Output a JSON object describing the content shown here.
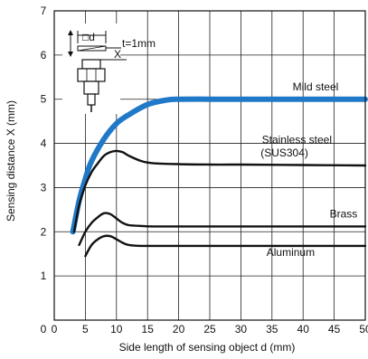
{
  "chart_data": {
    "type": "line",
    "xlabel": "Side length of sensing object d (mm)",
    "ylabel": "Sensing distance X (mm)",
    "xlim": [
      0,
      50
    ],
    "ylim": [
      0,
      7
    ],
    "xticks": [
      0,
      5,
      10,
      15,
      20,
      25,
      30,
      35,
      40,
      45,
      50
    ],
    "yticks": [
      1,
      2,
      3,
      4,
      5,
      6,
      7
    ],
    "grid": true,
    "series": [
      {
        "name": "Mild steel",
        "color": "#1f78c8",
        "x": [
          3,
          4,
          5,
          6,
          8,
          10,
          12,
          15,
          18,
          20,
          25,
          30,
          35,
          40,
          45,
          50
        ],
        "y": [
          2.0,
          2.7,
          3.2,
          3.6,
          4.1,
          4.45,
          4.65,
          4.88,
          4.98,
          5.0,
          5.0,
          5.0,
          5.0,
          5.0,
          5.0,
          5.0
        ]
      },
      {
        "name": "Stainless steel (SUS304)",
        "color": "#111111",
        "x": [
          3.2,
          4,
          5,
          6,
          7,
          8,
          9,
          10,
          11,
          12,
          14,
          16,
          20,
          25,
          30,
          40,
          50
        ],
        "y": [
          2.0,
          2.6,
          3.05,
          3.35,
          3.55,
          3.72,
          3.8,
          3.83,
          3.8,
          3.72,
          3.6,
          3.55,
          3.53,
          3.52,
          3.52,
          3.51,
          3.5
        ]
      },
      {
        "name": "Brass",
        "color": "#111111",
        "x": [
          4,
          5,
          6,
          7,
          8,
          9,
          10,
          11,
          12,
          14,
          16,
          20,
          30,
          40,
          50
        ],
        "y": [
          1.7,
          2.0,
          2.2,
          2.33,
          2.42,
          2.4,
          2.3,
          2.2,
          2.15,
          2.13,
          2.12,
          2.12,
          2.12,
          2.12,
          2.12
        ]
      },
      {
        "name": "Aluminum",
        "color": "#111111",
        "x": [
          5,
          6,
          7,
          8,
          9,
          10,
          11,
          12,
          14,
          16,
          20,
          30,
          40,
          50
        ],
        "y": [
          1.45,
          1.7,
          1.83,
          1.9,
          1.9,
          1.83,
          1.75,
          1.7,
          1.68,
          1.68,
          1.68,
          1.68,
          1.68,
          1.68
        ]
      }
    ],
    "series_labels": [
      {
        "text": "Mild steel",
        "x": 42,
        "y": 5.2
      },
      {
        "text": "Stainless steel",
        "x": 39,
        "y": 4.0
      },
      {
        "text": "(SUS304)",
        "x": 37,
        "y": 3.7
      },
      {
        "text": "Brass",
        "x": 46.5,
        "y": 2.32
      },
      {
        "text": "Aluminum",
        "x": 38,
        "y": 1.45
      }
    ],
    "inset": {
      "d_label": "□d",
      "x_label": "X",
      "t_label": "t=1mm"
    }
  }
}
